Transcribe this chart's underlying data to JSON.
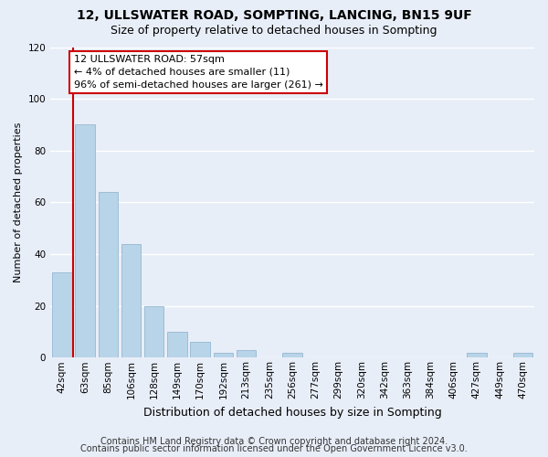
{
  "title1": "12, ULLSWATER ROAD, SOMPTING, LANCING, BN15 9UF",
  "title2": "Size of property relative to detached houses in Sompting",
  "xlabel": "Distribution of detached houses by size in Sompting",
  "ylabel": "Number of detached properties",
  "bar_labels": [
    "42sqm",
    "63sqm",
    "85sqm",
    "106sqm",
    "128sqm",
    "149sqm",
    "170sqm",
    "192sqm",
    "213sqm",
    "235sqm",
    "256sqm",
    "277sqm",
    "299sqm",
    "320sqm",
    "342sqm",
    "363sqm",
    "384sqm",
    "406sqm",
    "427sqm",
    "449sqm",
    "470sqm"
  ],
  "bar_values": [
    33,
    90,
    64,
    44,
    20,
    10,
    6,
    2,
    3,
    0,
    2,
    0,
    0,
    0,
    0,
    0,
    0,
    0,
    2,
    0,
    2
  ],
  "bar_color": "#b8d4e8",
  "bar_edge_color": "#8ab0cc",
  "vline_x": 1.0,
  "vline_color": "#cc0000",
  "annotation_text": "12 ULLSWATER ROAD: 57sqm\n← 4% of detached houses are smaller (11)\n96% of semi-detached houses are larger (261) →",
  "annotation_box_color": "#ffffff",
  "annotation_box_edge": "#cc0000",
  "ylim": [
    0,
    120
  ],
  "yticks": [
    0,
    20,
    40,
    60,
    80,
    100,
    120
  ],
  "footer1": "Contains HM Land Registry data © Crown copyright and database right 2024.",
  "footer2": "Contains public sector information licensed under the Open Government Licence v3.0.",
  "bg_color": "#e8eef8",
  "grid_color": "#ffffff",
  "title_fontsize": 10,
  "subtitle_fontsize": 9,
  "xlabel_fontsize": 9,
  "ylabel_fontsize": 8,
  "tick_fontsize": 7.5,
  "annotation_fontsize": 8,
  "footer_fontsize": 7
}
